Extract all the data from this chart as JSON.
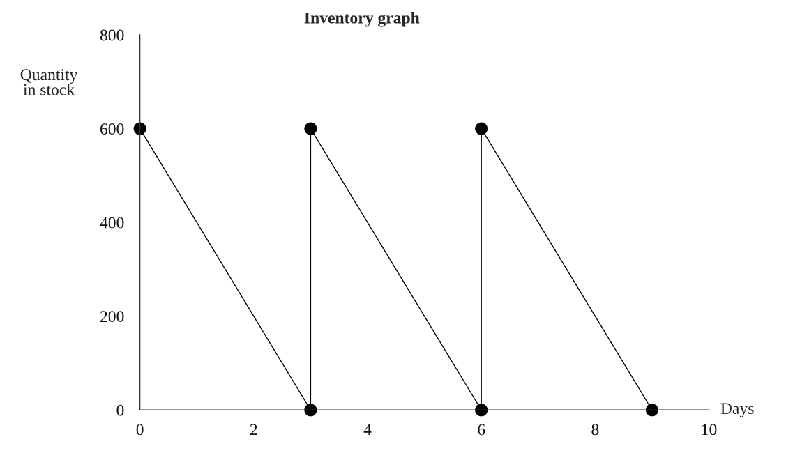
{
  "chart_data": {
    "type": "line",
    "title": "Inventory graph",
    "xlabel": "Days",
    "ylabel": "Quantity\nin stock",
    "x": [
      0,
      3,
      3,
      6,
      6,
      9
    ],
    "series": [
      {
        "color": "#000000",
        "values": [
          600,
          0,
          600,
          0,
          600,
          0
        ]
      }
    ],
    "xlim": [
      0,
      10
    ],
    "ylim": [
      0,
      800
    ],
    "xticks": [
      0,
      2,
      4,
      6,
      8,
      10
    ],
    "yticks": [
      0,
      200,
      400,
      600,
      800
    ],
    "marker": "circle",
    "line_style": "solid",
    "grid": false,
    "legend": false
  }
}
